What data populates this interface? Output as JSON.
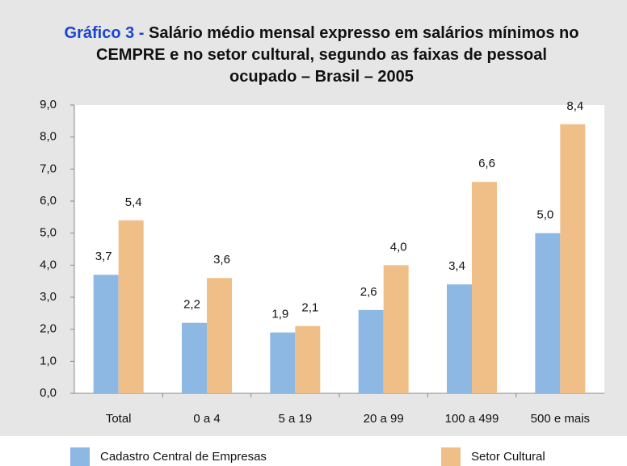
{
  "chart_data": {
    "type": "bar",
    "title_prefix": "Gráfico 3 -",
    "title": "Salário médio mensal expresso em salários mínimos no CEMPRE e no setor cultural, segundo as faixas de pessoal ocupado – Brasil – 2005",
    "categories": [
      "Total",
      "0 a 4",
      "5 a 19",
      "20 a 99",
      "100 a 499",
      "500 e mais"
    ],
    "series": [
      {
        "name": "Cadastro Central de Empresas",
        "color": "#8db8e4",
        "values": [
          3.7,
          2.2,
          1.9,
          2.6,
          3.4,
          5.0
        ],
        "value_labels": [
          "3,7",
          "2,2",
          "1,9",
          "2,6",
          "3,4",
          "5,0"
        ]
      },
      {
        "name": "Setor Cultural",
        "color": "#f0bf88",
        "values": [
          5.4,
          3.6,
          2.1,
          4.0,
          6.6,
          8.4
        ],
        "value_labels": [
          "5,4",
          "3,6",
          "2,1",
          "4,0",
          "6,6",
          "8,4"
        ]
      }
    ],
    "ylim": [
      0,
      9
    ],
    "yticks": [
      {
        "value": 0,
        "label": "0,0"
      },
      {
        "value": 1,
        "label": "1,0"
      },
      {
        "value": 2,
        "label": "2,0"
      },
      {
        "value": 3,
        "label": "3,0"
      },
      {
        "value": 4,
        "label": "4,0"
      },
      {
        "value": 5,
        "label": "5,0"
      },
      {
        "value": 6,
        "label": "6,0"
      },
      {
        "value": 7,
        "label": "7,0"
      },
      {
        "value": 8,
        "label": "8,0"
      },
      {
        "value": 9,
        "label": "9,0"
      }
    ]
  }
}
